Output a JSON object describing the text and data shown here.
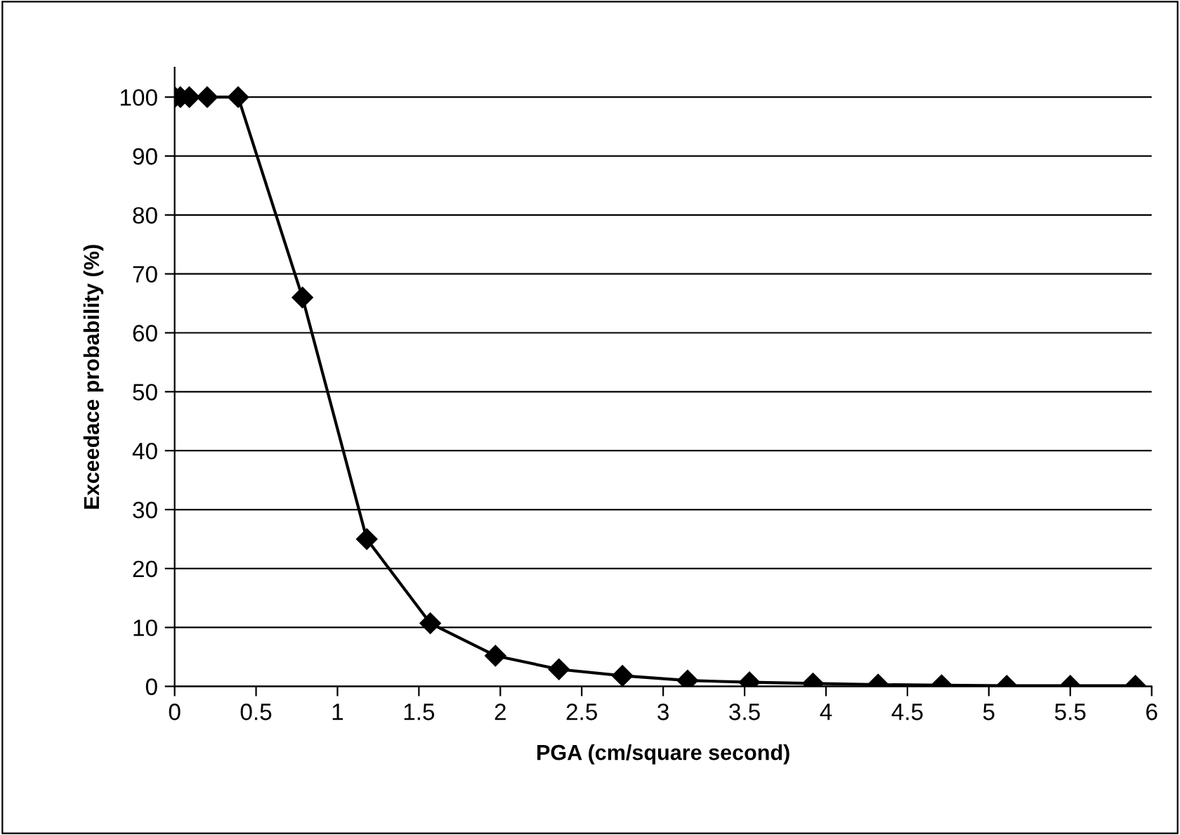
{
  "chart_data": {
    "type": "line",
    "xlabel": "PGA (cm/square second)",
    "ylabel": "Exceedace probability (%)",
    "x": [
      0.0,
      0.035,
      0.09,
      0.2,
      0.39,
      0.785,
      1.18,
      1.57,
      1.97,
      2.36,
      2.75,
      3.15,
      3.53,
      3.92,
      4.32,
      4.71,
      5.11,
      5.5,
      5.9
    ],
    "series": [
      {
        "color": "#000000",
        "values": [
          100,
          100,
          100,
          100,
          100,
          66,
          25,
          10.7,
          5.2,
          2.9,
          1.8,
          1.0,
          0.7,
          0.5,
          0.3,
          0.2,
          0.1,
          0.1,
          0.1
        ]
      }
    ],
    "xlim": [
      0,
      6
    ],
    "xticks": [
      0,
      0.5,
      1,
      1.5,
      2,
      2.5,
      3,
      3.5,
      4,
      4.5,
      5,
      5.5,
      6
    ],
    "ylim": [
      0,
      105
    ],
    "yticks": [
      0,
      10,
      20,
      30,
      40,
      50,
      60,
      70,
      80,
      90,
      100
    ],
    "grid": "y",
    "marker": "diamond",
    "line_style": "solid",
    "legend": false
  }
}
